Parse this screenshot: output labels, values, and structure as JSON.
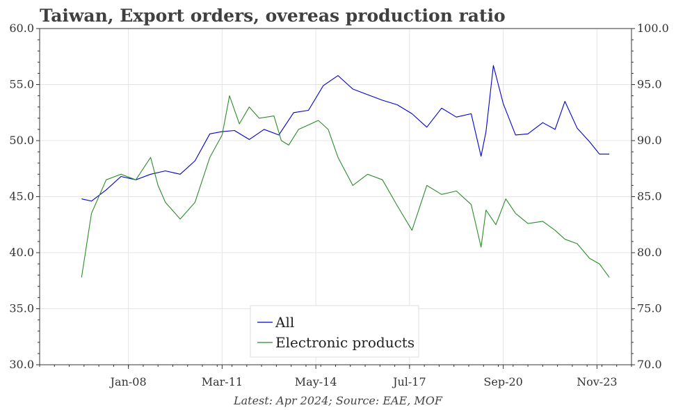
{
  "title": "Taiwan, Export orders, overeas production ratio",
  "footer": "Latest: Apr 2024; Source: EAE, MOF",
  "colors": {
    "all": "#0000cc",
    "electronic": "#2a8c2a",
    "grid": "#e4e4e4",
    "axis": "#333333"
  },
  "chart_data": {
    "type": "line",
    "title": "Taiwan, Export orders, overeas production ratio",
    "xlabel": "",
    "ylabel_left": "",
    "ylabel_right": "",
    "x_ticks": [
      "Jan-08",
      "Mar-11",
      "May-14",
      "Jul-17",
      "Sep-20",
      "Nov-23"
    ],
    "y_left_ticks": [
      "30.0",
      "35.0",
      "40.0",
      "45.0",
      "50.0",
      "55.0",
      "60.0"
    ],
    "y_right_ticks": [
      "70.0",
      "75.0",
      "80.0",
      "85.0",
      "90.0",
      "95.0",
      "100.0"
    ],
    "xlim": [
      "2005-01",
      "2025-01"
    ],
    "ylim_left": [
      30,
      60
    ],
    "ylim_right": [
      70,
      100
    ],
    "grid": true,
    "legend_position": "bottom-center",
    "series": [
      {
        "name": "All",
        "axis": "left",
        "x": [
          "2006-06",
          "2006-10",
          "2007-04",
          "2007-10",
          "2008-04",
          "2008-10",
          "2009-04",
          "2009-10",
          "2010-04",
          "2010-10",
          "2011-03",
          "2011-08",
          "2012-02",
          "2012-08",
          "2013-02",
          "2013-08",
          "2014-02",
          "2014-08",
          "2015-02",
          "2015-08",
          "2016-02",
          "2016-08",
          "2017-02",
          "2017-08",
          "2018-02",
          "2018-08",
          "2019-02",
          "2019-08",
          "2019-12",
          "2020-02",
          "2020-05",
          "2020-09",
          "2021-02",
          "2021-07",
          "2022-01",
          "2022-06",
          "2022-10",
          "2023-03",
          "2023-08",
          "2023-12",
          "2024-04"
        ],
        "values": [
          44.8,
          44.6,
          45.6,
          46.8,
          46.5,
          47.0,
          47.3,
          47.0,
          48.2,
          50.6,
          50.8,
          50.9,
          50.1,
          51.0,
          50.5,
          52.5,
          52.7,
          54.9,
          55.8,
          54.6,
          54.1,
          53.6,
          53.2,
          52.4,
          51.2,
          52.9,
          52.1,
          52.4,
          48.6,
          50.8,
          56.7,
          53.3,
          50.5,
          50.6,
          51.6,
          51.0,
          53.5,
          51.1,
          49.9,
          48.8,
          48.8
        ]
      },
      {
        "name": "Electronic products",
        "axis": "right",
        "x": [
          "2006-06",
          "2006-10",
          "2007-04",
          "2007-10",
          "2008-04",
          "2008-10",
          "2009-01",
          "2009-04",
          "2009-10",
          "2010-04",
          "2010-10",
          "2011-03",
          "2011-06",
          "2011-10",
          "2012-02",
          "2012-06",
          "2012-12",
          "2013-03",
          "2013-06",
          "2013-10",
          "2014-02",
          "2014-06",
          "2014-10",
          "2015-02",
          "2015-08",
          "2016-02",
          "2016-08",
          "2017-02",
          "2017-08",
          "2018-02",
          "2018-08",
          "2019-02",
          "2019-08",
          "2019-12",
          "2020-02",
          "2020-06",
          "2020-10",
          "2021-02",
          "2021-07",
          "2022-01",
          "2022-06",
          "2022-10",
          "2023-03",
          "2023-08",
          "2023-12",
          "2024-04"
        ],
        "values": [
          77.8,
          83.5,
          86.5,
          87.0,
          86.5,
          88.5,
          86.0,
          84.5,
          83.0,
          84.5,
          88.5,
          90.5,
          94.0,
          91.5,
          93.0,
          92.0,
          92.2,
          90.0,
          89.6,
          91.0,
          91.4,
          91.8,
          91.0,
          88.5,
          86.0,
          87.0,
          86.5,
          84.2,
          82.0,
          86.0,
          85.2,
          85.5,
          84.3,
          80.5,
          83.8,
          82.5,
          84.8,
          83.5,
          82.6,
          82.8,
          82.0,
          81.2,
          80.8,
          79.5,
          79.0,
          77.8
        ]
      }
    ]
  }
}
